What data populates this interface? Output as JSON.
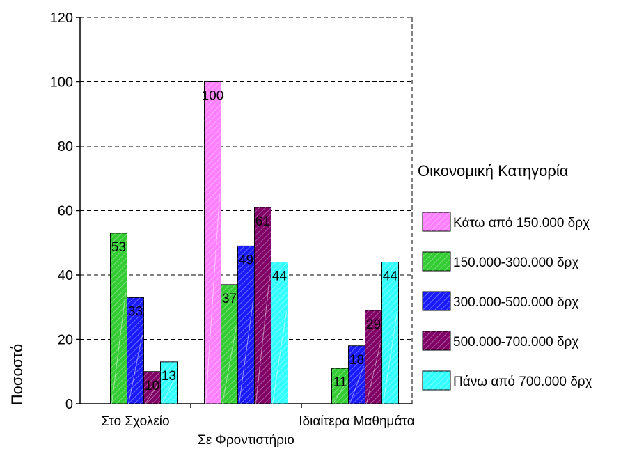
{
  "chart_data": {
    "type": "bar",
    "ylabel": "Ποσοστό",
    "xlabel": "",
    "ylim": [
      0,
      120
    ],
    "yticks": [
      0,
      20,
      40,
      60,
      80,
      100,
      120
    ],
    "grid": true,
    "legend_position": "right",
    "legend_title": "Οικονομική Κατηγορία",
    "categories": [
      "Στο Σχολείο",
      "Σε Φροντιστήριο",
      "Ιδιαίτερα Μαθημάτα"
    ],
    "series": [
      {
        "name": "Κάτω από 150.000 δρχ",
        "color": "#ff80ff",
        "values": [
          0,
          100,
          0
        ],
        "labels": [
          "",
          "100",
          ""
        ]
      },
      {
        "name": "150.000-300.000 δρχ",
        "color": "#33cc33",
        "values": [
          53,
          37,
          11
        ],
        "labels": [
          "53",
          "37",
          "11"
        ]
      },
      {
        "name": "300.000-500.000 δρχ",
        "color": "#1a1aff",
        "values": [
          33,
          49,
          18
        ],
        "labels": [
          "33",
          "49",
          "18"
        ]
      },
      {
        "name": "500.000-700.000 δρχ",
        "color": "#800066",
        "values": [
          10,
          61,
          29
        ],
        "labels": [
          "10",
          "61",
          "29"
        ]
      },
      {
        "name": "Πάνω από 700.000 δρχ",
        "color": "#33ffff",
        "values": [
          13,
          44,
          44
        ],
        "labels": [
          "13",
          "44",
          "44"
        ]
      }
    ]
  }
}
